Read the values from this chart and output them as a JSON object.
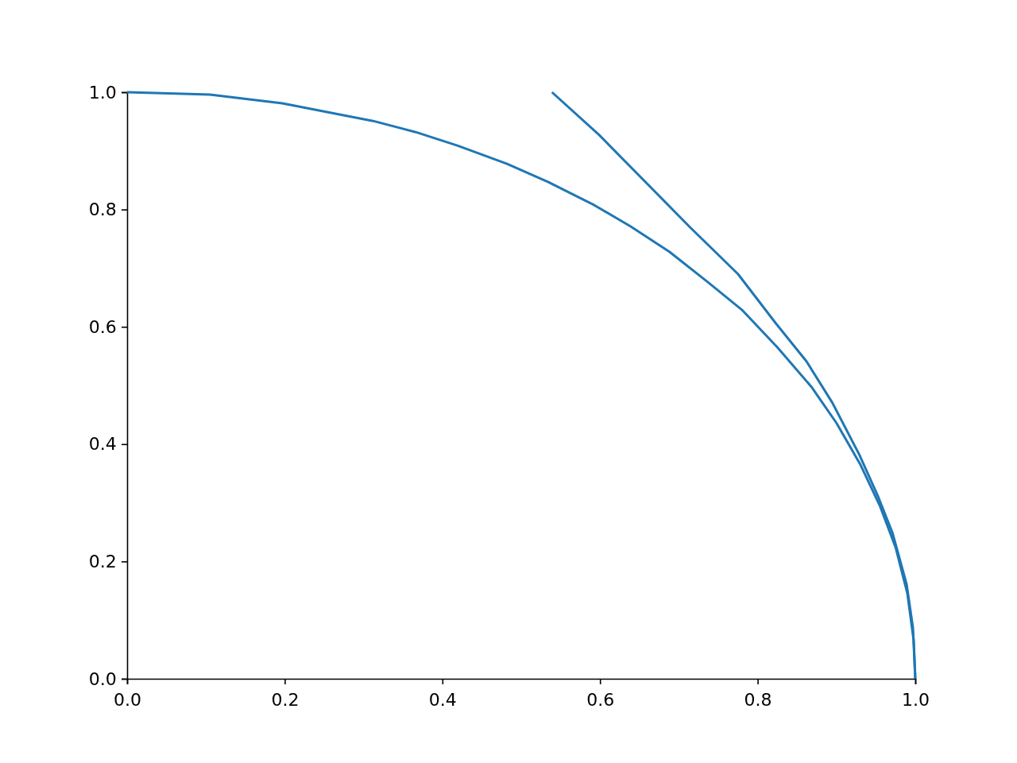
{
  "chart_data": {
    "type": "line",
    "xlim": [
      0,
      1
    ],
    "ylim": [
      0,
      1
    ],
    "xticks": [
      {
        "value": 0,
        "label": "0.0"
      },
      {
        "value": 0.2,
        "label": "0.2"
      },
      {
        "value": 0.4,
        "label": "0.4"
      },
      {
        "value": 0.6,
        "label": "0.6"
      },
      {
        "value": 0.8,
        "label": "0.8"
      },
      {
        "value": 1,
        "label": "1.0"
      }
    ],
    "yticks": [
      {
        "value": 0,
        "label": "0.0"
      },
      {
        "value": 0.2,
        "label": "0.2"
      },
      {
        "value": 0.4,
        "label": "0.4"
      },
      {
        "value": 0.6,
        "label": "0.6"
      },
      {
        "value": 0.8,
        "label": "0.8"
      },
      {
        "value": 1,
        "label": "1.0"
      }
    ],
    "grid": false,
    "series": [
      {
        "color": "#1f77b4",
        "x": [
          0,
          0.105,
          0.197,
          0.312,
          0.366,
          0.419,
          0.482,
          0.534,
          0.592,
          0.639,
          0.688,
          0.737,
          0.78,
          0.825,
          0.868,
          0.9,
          0.93,
          0.955,
          0.975,
          0.99,
          0.998,
          1
        ],
        "values": [
          1,
          0.996,
          0.981,
          0.951,
          0.932,
          0.909,
          0.878,
          0.847,
          0.808,
          0.771,
          0.728,
          0.676,
          0.629,
          0.565,
          0.498,
          0.436,
          0.366,
          0.295,
          0.224,
          0.145,
          0.065,
          0
        ]
      },
      {
        "color": "#1f77b4",
        "x": [
          0.539,
          0.599,
          0.714,
          0.775,
          0.823,
          0.862,
          0.895,
          0.929,
          0.953,
          0.971,
          0.989,
          0.997,
          1
        ],
        "values": [
          1,
          0.927,
          0.77,
          0.69,
          0.606,
          0.541,
          0.47,
          0.382,
          0.31,
          0.249,
          0.161,
          0.087,
          0
        ]
      }
    ]
  }
}
